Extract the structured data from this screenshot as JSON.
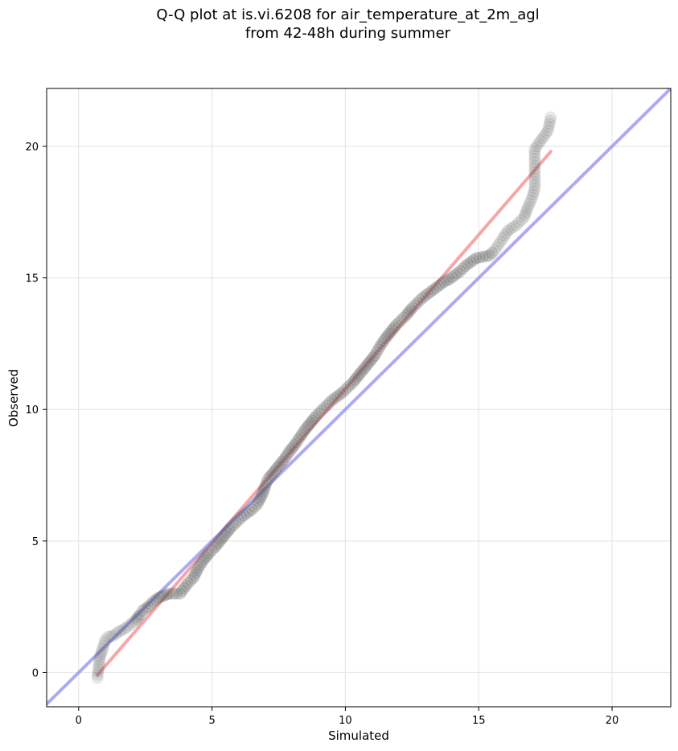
{
  "title_line1": "Q-Q plot at is.vi.6208 for air_temperature_at_2m_agl",
  "title_line2": "from 42-48h during summer",
  "chart_data": {
    "type": "scatter",
    "title": "Q-Q plot at is.vi.6208 for air_temperature_at_2m_agl from 42-48h during summer",
    "xlabel": "Simulated",
    "ylabel": "Observed",
    "xlim": [
      -1.2,
      22.2
    ],
    "ylim": [
      -1.3,
      22.2
    ],
    "xticks": [
      0,
      5,
      10,
      15,
      20
    ],
    "yticks": [
      0,
      5,
      10,
      15,
      20
    ],
    "grid": true,
    "point_color": "#555555",
    "points": [
      [
        0.7,
        -0.2
      ],
      [
        0.8,
        0.6
      ],
      [
        0.9,
        0.9
      ],
      [
        1.0,
        1.25
      ],
      [
        1.1,
        1.35
      ],
      [
        1.3,
        1.4
      ],
      [
        1.5,
        1.55
      ],
      [
        1.7,
        1.65
      ],
      [
        1.9,
        1.8
      ],
      [
        2.1,
        1.95
      ],
      [
        2.3,
        2.2
      ],
      [
        2.4,
        2.35
      ],
      [
        2.6,
        2.5
      ],
      [
        2.8,
        2.7
      ],
      [
        3.0,
        2.85
      ],
      [
        3.4,
        3.0
      ],
      [
        3.8,
        3.0
      ],
      [
        4.1,
        3.4
      ],
      [
        4.3,
        3.6
      ],
      [
        4.5,
        4.0
      ],
      [
        4.7,
        4.3
      ],
      [
        4.9,
        4.55
      ],
      [
        5.1,
        4.75
      ],
      [
        5.3,
        5.0
      ],
      [
        5.5,
        5.25
      ],
      [
        5.7,
        5.5
      ],
      [
        5.9,
        5.7
      ],
      [
        6.1,
        5.9
      ],
      [
        6.3,
        6.05
      ],
      [
        6.5,
        6.2
      ],
      [
        6.7,
        6.4
      ],
      [
        6.8,
        6.6
      ],
      [
        6.9,
        6.8
      ],
      [
        7.0,
        7.1
      ],
      [
        7.1,
        7.35
      ],
      [
        7.3,
        7.6
      ],
      [
        7.5,
        7.85
      ],
      [
        7.7,
        8.1
      ],
      [
        7.9,
        8.4
      ],
      [
        8.1,
        8.65
      ],
      [
        8.3,
        8.95
      ],
      [
        8.5,
        9.25
      ],
      [
        8.7,
        9.5
      ],
      [
        8.9,
        9.75
      ],
      [
        9.1,
        9.95
      ],
      [
        9.3,
        10.15
      ],
      [
        9.5,
        10.35
      ],
      [
        9.7,
        10.5
      ],
      [
        9.9,
        10.65
      ],
      [
        10.1,
        10.85
      ],
      [
        10.3,
        11.05
      ],
      [
        10.5,
        11.3
      ],
      [
        10.7,
        11.55
      ],
      [
        10.9,
        11.8
      ],
      [
        11.1,
        12.05
      ],
      [
        11.3,
        12.4
      ],
      [
        11.5,
        12.7
      ],
      [
        11.7,
        12.95
      ],
      [
        11.9,
        13.2
      ],
      [
        12.1,
        13.4
      ],
      [
        12.3,
        13.6
      ],
      [
        12.5,
        13.85
      ],
      [
        12.7,
        14.05
      ],
      [
        12.9,
        14.25
      ],
      [
        13.1,
        14.4
      ],
      [
        13.3,
        14.55
      ],
      [
        13.5,
        14.7
      ],
      [
        13.7,
        14.85
      ],
      [
        13.9,
        14.95
      ],
      [
        14.1,
        15.1
      ],
      [
        14.3,
        15.25
      ],
      [
        14.5,
        15.45
      ],
      [
        14.7,
        15.6
      ],
      [
        14.9,
        15.75
      ],
      [
        15.4,
        15.85
      ],
      [
        15.6,
        16.05
      ],
      [
        15.9,
        16.5
      ],
      [
        16.1,
        16.8
      ],
      [
        16.4,
        17.0
      ],
      [
        16.7,
        17.3
      ],
      [
        16.85,
        17.7
      ],
      [
        17.0,
        18.05
      ],
      [
        17.1,
        18.4
      ],
      [
        17.1,
        19.9
      ],
      [
        17.6,
        20.6
      ],
      [
        17.7,
        21.1
      ]
    ],
    "lines": [
      {
        "name": "fit",
        "color": "#f28080",
        "x": [
          0.7,
          17.7
        ],
        "y": [
          -0.1,
          19.8
        ]
      },
      {
        "name": "identity",
        "color": "#8888ee",
        "x": [
          -1.2,
          22.2
        ],
        "y": [
          -1.2,
          22.2
        ]
      }
    ]
  }
}
